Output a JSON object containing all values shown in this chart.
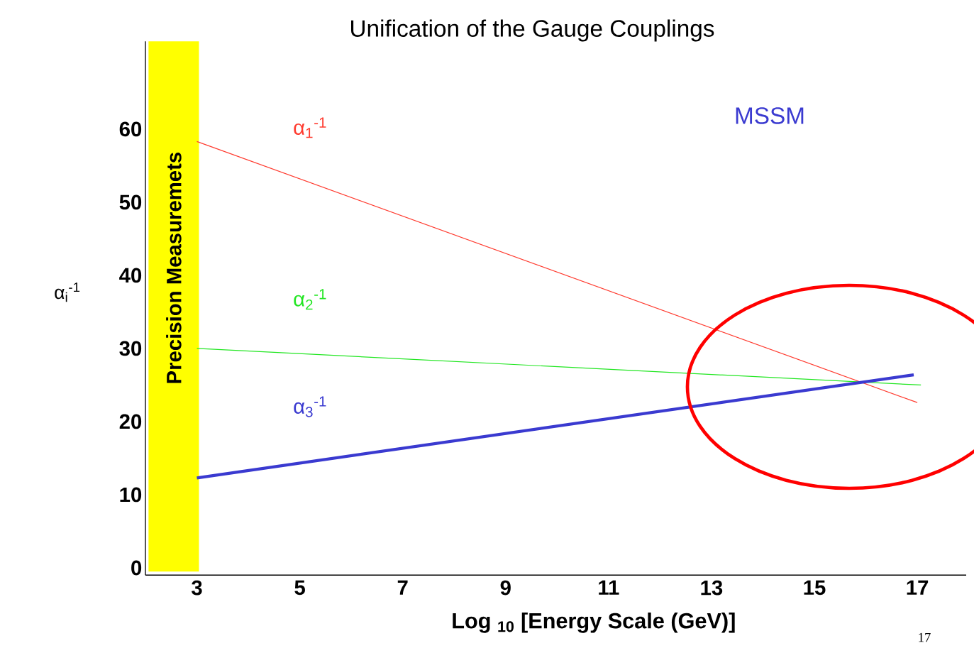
{
  "chart_data": {
    "type": "line",
    "title": "Unification of the Gauge Couplings",
    "xlabel": "Log $_{10}$ [Energy Scale (GeV)]",
    "ylabel": "α$_{i}$$^{-1}$",
    "series": [
      {
        "name": "α$_{1}$$^{-1}$",
        "color": "#ff3b2f",
        "x": [
          3,
          17
        ],
        "values": [
          58.3,
          22.6
        ]
      },
      {
        "name": "α$_{2}$$^{-1}$",
        "color": "#22e622",
        "x": [
          3,
          17.07
        ],
        "values": [
          30.0,
          25.0
        ]
      },
      {
        "name": "α$_{3}$$^{-1}$",
        "color": "#3a3ad0",
        "x": [
          3,
          16.93
        ],
        "values": [
          12.3,
          26.4
        ]
      }
    ],
    "xlim": [
      2,
      17.95
    ],
    "ylim": [
      -1,
      72
    ],
    "xticks": [
      3,
      5,
      7,
      9,
      11,
      13,
      15,
      17
    ],
    "yticks": [
      0,
      10,
      20,
      30,
      40,
      50,
      60
    ],
    "bands": [
      {
        "axis": "x",
        "from": 2.06,
        "to": 3.04,
        "label": "Precision Measuremets",
        "color": "#ffff00"
      }
    ],
    "annotations": [
      "MSSM",
      "17"
    ],
    "grid": false,
    "marker": "none",
    "line_style": "solid"
  }
}
